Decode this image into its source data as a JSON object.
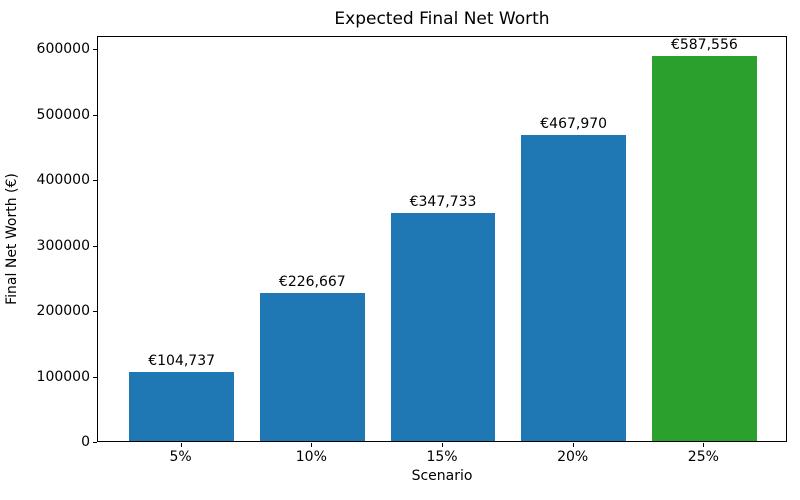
{
  "figure": {
    "background": "#ffffff",
    "spine_color": "#000000",
    "text_color": "#000000"
  },
  "chart_data": {
    "type": "bar",
    "title": "Expected Final Net Worth",
    "xlabel": "Scenario",
    "ylabel": "Final Net Worth (€)",
    "categories": [
      "5%",
      "10%",
      "15%",
      "20%",
      "25%"
    ],
    "values": [
      104737,
      226667,
      347733,
      467970,
      587556
    ],
    "bar_value_labels": [
      "€104,737",
      "€226,667",
      "€347,733",
      "€467,970",
      "€587,556"
    ],
    "bar_colors": [
      "#1f77b4",
      "#1f77b4",
      "#1f77b4",
      "#1f77b4",
      "#2ca02c"
    ],
    "default_bar_color": "#1f77b4",
    "highlight_bar_color": "#2ca02c",
    "yticks": [
      0,
      100000,
      200000,
      300000,
      400000,
      500000,
      600000
    ],
    "ytick_labels": [
      "0",
      "100000",
      "200000",
      "300000",
      "400000",
      "500000",
      "600000"
    ],
    "ylim": [
      0,
      620000
    ],
    "grid": false,
    "legend_position": "none"
  }
}
